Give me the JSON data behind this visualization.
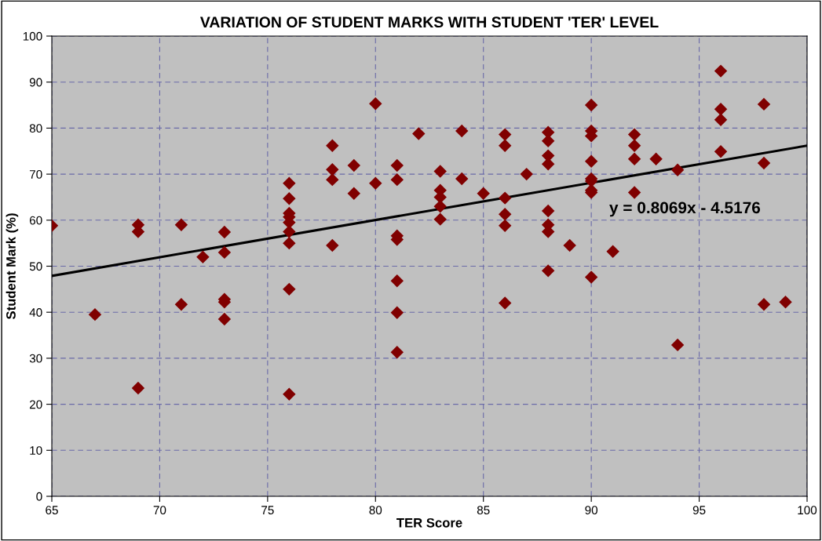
{
  "chart_data": {
    "type": "scatter",
    "title": "VARIATION OF STUDENT MARKS WITH STUDENT 'TER' LEVEL",
    "xlabel": "TER Score",
    "ylabel": "Student Mark (%)",
    "annotations": [
      "y = 0.8069x - 4.5176"
    ],
    "xlim": [
      65,
      100
    ],
    "xticks": [
      65,
      70,
      75,
      80,
      85,
      90,
      95,
      100
    ],
    "ylim": [
      0,
      100
    ],
    "yticks": [
      0,
      10,
      20,
      30,
      40,
      50,
      60,
      70,
      80,
      90,
      100
    ],
    "grid": true,
    "marker": "diamond",
    "legend": false,
    "series": [
      {
        "color": "#800000",
        "x": [
          65,
          67,
          69,
          69,
          69,
          71,
          71,
          72,
          73,
          73,
          73,
          73,
          73,
          76,
          76,
          76,
          76,
          76,
          76,
          76,
          76,
          76,
          78,
          78,
          78,
          78,
          79,
          79,
          80,
          80,
          81,
          81,
          81,
          81,
          81,
          81,
          81,
          82,
          83,
          83,
          83,
          83,
          83,
          84,
          84,
          85,
          86,
          86,
          86,
          86,
          86,
          86,
          87,
          88,
          88,
          88,
          88,
          88,
          88,
          88,
          88,
          89,
          90,
          90,
          90,
          90,
          90,
          90,
          90,
          90,
          90,
          91,
          92,
          92,
          92,
          92,
          93,
          94,
          94,
          96,
          96,
          96,
          96,
          98,
          98,
          98,
          99
        ],
        "values": [
          58.8,
          39.5,
          59,
          57.5,
          23.5,
          59,
          41.7,
          52,
          57.4,
          53,
          42.8,
          42.2,
          38.5,
          68,
          64.7,
          61.5,
          60.7,
          59.5,
          57.5,
          55,
          45,
          22.2,
          76.2,
          71,
          68.8,
          54.5,
          71.9,
          65.8,
          85.3,
          68,
          71.9,
          68.8,
          56.6,
          55.8,
          46.8,
          39.9,
          31.3,
          78.8,
          70.6,
          66.5,
          65,
          63,
          60.2,
          79.4,
          69,
          65.8,
          78.6,
          76.2,
          64.8,
          61.3,
          58.8,
          42,
          70,
          79.1,
          77.2,
          74,
          72.2,
          62,
          59,
          57.5,
          49,
          54.5,
          85,
          79.4,
          78.3,
          72.8,
          69,
          68.5,
          66.5,
          66,
          47.6,
          53.2,
          78.6,
          76.2,
          73.3,
          66,
          73.3,
          70.9,
          32.9,
          92.4,
          84.1,
          81.8,
          74.9,
          85.2,
          72.4,
          41.7,
          42.2
        ]
      },
      {
        "type": "line",
        "color": "#000000",
        "marker": "none",
        "x": [
          65,
          100
        ],
        "values": [
          47.9,
          76.2
        ]
      }
    ]
  }
}
